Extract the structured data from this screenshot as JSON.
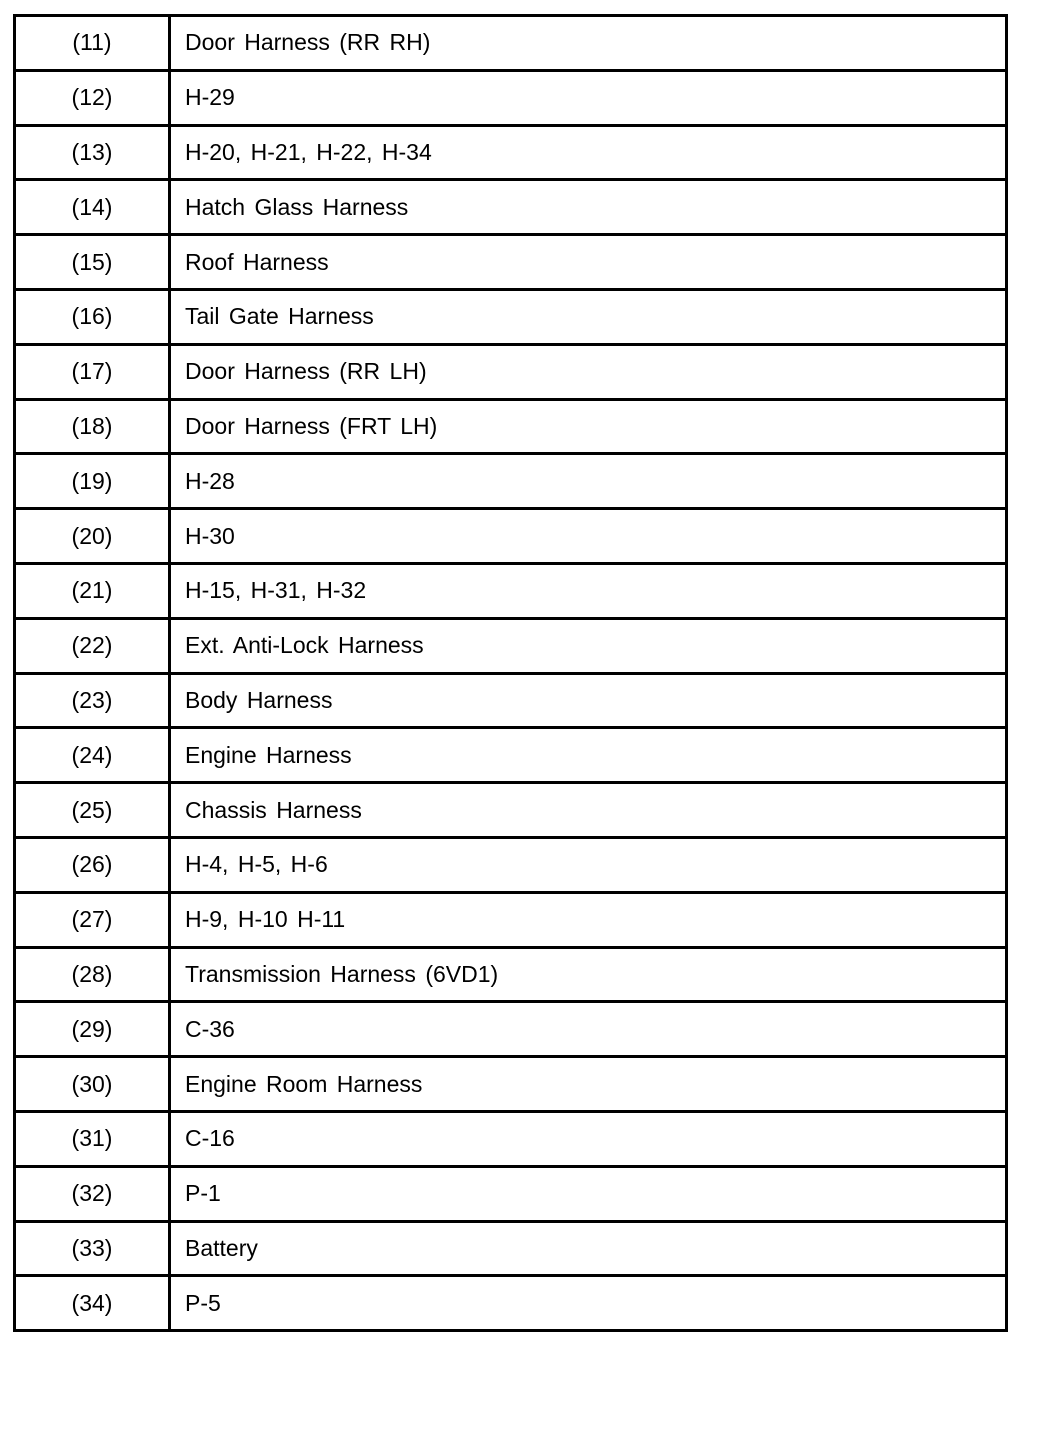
{
  "rows": [
    {
      "num": "(11)",
      "desc": "Door Harness (RR RH)"
    },
    {
      "num": "(12)",
      "desc": "H-29"
    },
    {
      "num": "(13)",
      "desc": "H-20, H-21, H-22, H-34"
    },
    {
      "num": "(14)",
      "desc": "Hatch Glass Harness"
    },
    {
      "num": "(15)",
      "desc": "Roof Harness"
    },
    {
      "num": "(16)",
      "desc": "Tail Gate Harness"
    },
    {
      "num": "(17)",
      "desc": "Door Harness (RR LH)"
    },
    {
      "num": "(18)",
      "desc": "Door Harness (FRT LH)"
    },
    {
      "num": "(19)",
      "desc": "H-28"
    },
    {
      "num": "(20)",
      "desc": "H-30"
    },
    {
      "num": "(21)",
      "desc": "H-15, H-31, H-32"
    },
    {
      "num": "(22)",
      "desc": "Ext.  Anti-Lock Harness"
    },
    {
      "num": "(23)",
      "desc": "Body Harness"
    },
    {
      "num": "(24)",
      "desc": "Engine Harness"
    },
    {
      "num": "(25)",
      "desc": "Chassis Harness"
    },
    {
      "num": "(26)",
      "desc": "H-4, H-5, H-6"
    },
    {
      "num": "(27)",
      "desc": "H-9, H-10 H-11"
    },
    {
      "num": "(28)",
      "desc": "Transmission Harness (6VD1)"
    },
    {
      "num": "(29)",
      "desc": "C-36"
    },
    {
      "num": "(30)",
      "desc": "Engine Room Harness"
    },
    {
      "num": "(31)",
      "desc": "C-16"
    },
    {
      "num": "(32)",
      "desc": "P-1"
    },
    {
      "num": "(33)",
      "desc": "Battery"
    },
    {
      "num": "(34)",
      "desc": "P-5"
    }
  ]
}
